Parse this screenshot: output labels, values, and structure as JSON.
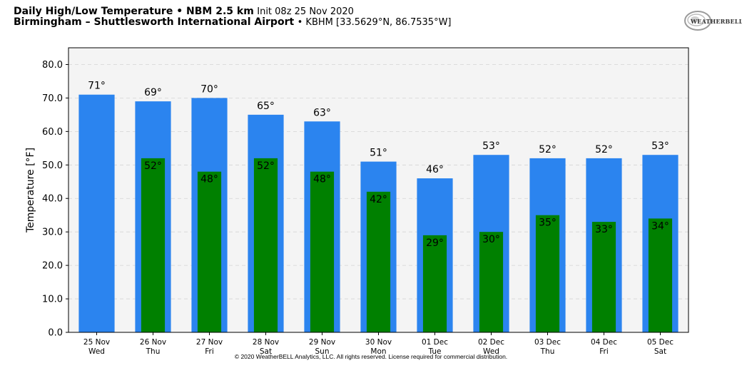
{
  "header": {
    "title_bold": "Daily High/Low Temperature • NBM 2.5 km",
    "init": "Init 08z 25 Nov 2020",
    "location_bold": "Birmingham – Shuttlesworth International Airport",
    "station": "• KBHM [33.5629°N, 86.7535°W]"
  },
  "logo": {
    "text": "WEATHERBELL",
    "icon": "weatherbell-swirl-logo-icon"
  },
  "footer": {
    "copyright": "© 2020 WeatherBELL Analytics, LLC. All rights reserved. License required for commercial distribution."
  },
  "colors": {
    "high": "#2b84ef",
    "low": "#008000",
    "plot_bg": "#f4f4f4",
    "grid": "#d4d4d4"
  },
  "chart_data": {
    "type": "bar",
    "ylabel": "Temperature [°F]",
    "ylim": [
      0,
      85
    ],
    "yticks": [
      "0.0",
      "10.0",
      "20.0",
      "30.0",
      "40.0",
      "50.0",
      "60.0",
      "70.0",
      "80.0"
    ],
    "grid": true,
    "categories": [
      {
        "date": "25 Nov",
        "day": "Wed"
      },
      {
        "date": "26 Nov",
        "day": "Thu"
      },
      {
        "date": "27 Nov",
        "day": "Fri"
      },
      {
        "date": "28 Nov",
        "day": "Sat"
      },
      {
        "date": "29 Nov",
        "day": "Sun"
      },
      {
        "date": "30 Nov",
        "day": "Mon"
      },
      {
        "date": "01 Dec",
        "day": "Tue"
      },
      {
        "date": "02 Dec",
        "day": "Wed"
      },
      {
        "date": "03 Dec",
        "day": "Thu"
      },
      {
        "date": "04 Dec",
        "day": "Fri"
      },
      {
        "date": "05 Dec",
        "day": "Sat"
      }
    ],
    "series": [
      {
        "key": "high",
        "values": [
          71,
          69,
          70,
          65,
          63,
          51,
          46,
          53,
          52,
          52,
          53
        ],
        "labels": [
          "71°",
          "69°",
          "70°",
          "65°",
          "63°",
          "51°",
          "46°",
          "53°",
          "52°",
          "52°",
          "53°"
        ]
      },
      {
        "key": "low",
        "values": [
          null,
          52,
          48,
          52,
          48,
          42,
          29,
          30,
          35,
          33,
          34
        ],
        "labels": [
          null,
          "52°",
          "48°",
          "52°",
          "48°",
          "42°",
          "29°",
          "30°",
          "35°",
          "33°",
          "34°"
        ]
      }
    ]
  }
}
